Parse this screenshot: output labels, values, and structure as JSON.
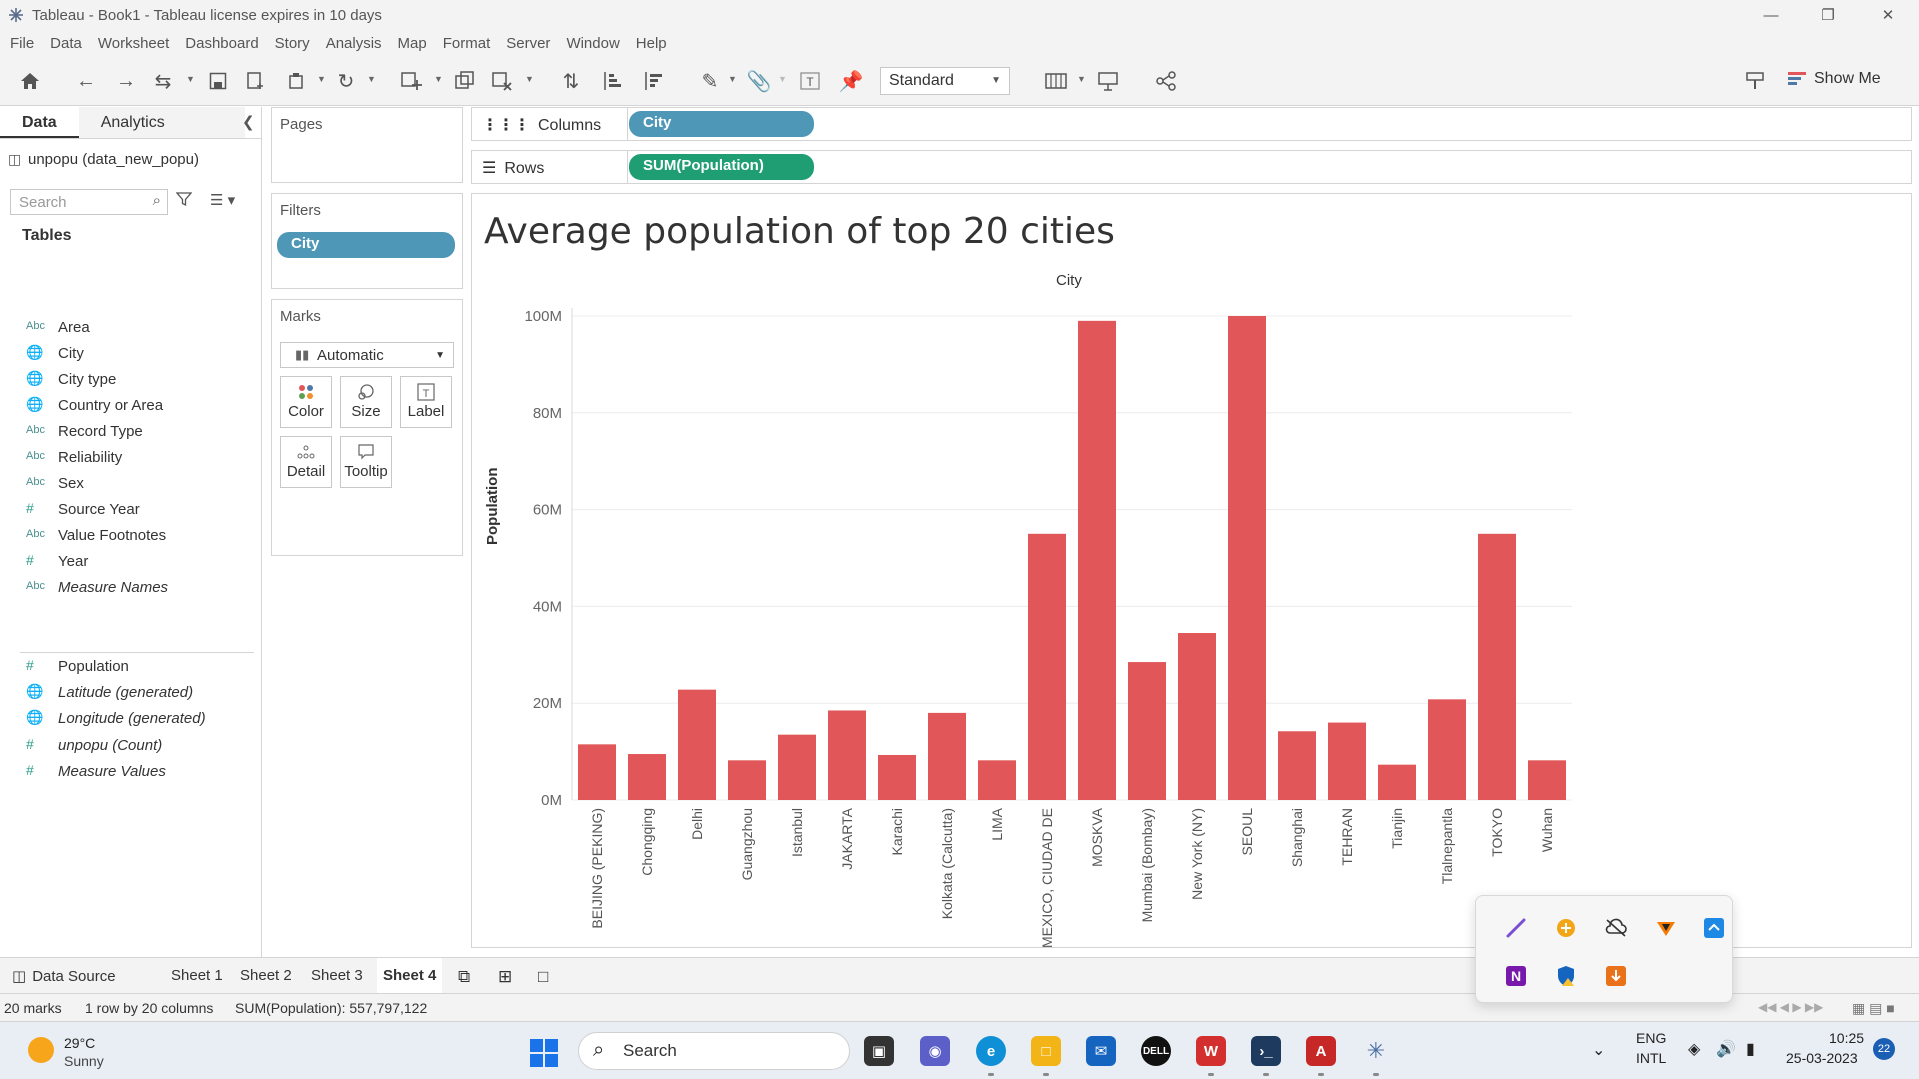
{
  "window": {
    "title": "Tableau - Book1 - Tableau license expires in 10 days"
  },
  "menu": [
    "File",
    "Data",
    "Worksheet",
    "Dashboard",
    "Story",
    "Analysis",
    "Map",
    "Format",
    "Server",
    "Window",
    "Help"
  ],
  "toolbar": {
    "fit_select": "Standard",
    "show_me": "Show Me"
  },
  "data_pane": {
    "tabs": [
      "Data",
      "Analytics"
    ],
    "data_source": "unpopu (data_new_popu)",
    "search_placeholder": "Search",
    "tables_heading": "Tables",
    "dimensions": [
      {
        "type": "Abc",
        "name": "Area"
      },
      {
        "type": "globe",
        "name": "City"
      },
      {
        "type": "globe",
        "name": "City type"
      },
      {
        "type": "globe",
        "name": "Country or Area"
      },
      {
        "type": "Abc",
        "name": "Record Type"
      },
      {
        "type": "Abc",
        "name": "Reliability"
      },
      {
        "type": "Abc",
        "name": "Sex"
      },
      {
        "type": "#",
        "name": "Source Year"
      },
      {
        "type": "Abc",
        "name": "Value Footnotes"
      },
      {
        "type": "#",
        "name": "Year"
      },
      {
        "type": "Abc",
        "name": "Measure Names",
        "italic": true
      }
    ],
    "measures": [
      {
        "type": "#",
        "name": "Population"
      },
      {
        "type": "globe",
        "name": "Latitude (generated)",
        "italic": true
      },
      {
        "type": "globe",
        "name": "Longitude (generated)",
        "italic": true
      },
      {
        "type": "#",
        "name": "unpopu (Count)",
        "italic": true
      },
      {
        "type": "#",
        "name": "Measure Values",
        "italic": true
      }
    ]
  },
  "cards": {
    "pages": "Pages",
    "filters": "Filters",
    "filter_pill": "City",
    "marks": "Marks",
    "mark_type": "Automatic",
    "mark_buttons": [
      "Color",
      "Size",
      "Label",
      "Detail",
      "Tooltip"
    ]
  },
  "shelves": {
    "columns_label": "Columns",
    "columns_pill": "City",
    "rows_label": "Rows",
    "rows_pill": "SUM(Population)"
  },
  "chart_data": {
    "type": "bar",
    "title": "Average population of top 20 cities",
    "xlabel": "City",
    "ylabel": "Population",
    "ylim": [
      0,
      100000000
    ],
    "yticks": [
      "0M",
      "20M",
      "40M",
      "60M",
      "80M",
      "100M"
    ],
    "ytick_values": [
      0,
      20000000,
      40000000,
      60000000,
      80000000,
      100000000
    ],
    "categories": [
      "BEIJING (PEKING)",
      "Chongqing",
      "Delhi",
      "Guangzhou",
      "Istanbul",
      "JAKARTA",
      "Karachi",
      "Kolkata (Calcutta)",
      "LIMA",
      "MEXICO, CIUDAD DE",
      "MOSKVA",
      "Mumbai (Bombay)",
      "New York (NY)",
      "SEOUL",
      "Shanghai",
      "TEHRAN",
      "Tianjin",
      "Tlalnepantla",
      "TOKYO",
      "Wuhan"
    ],
    "values": [
      11500000,
      9500000,
      22800000,
      8200000,
      13500000,
      18500000,
      9300000,
      18000000,
      8200000,
      55000000,
      99000000,
      28500000,
      34500000,
      100000000,
      14200000,
      16000000,
      7300000,
      20800000,
      55000000,
      8200000
    ],
    "bar_color": "#e15759",
    "grid": true
  },
  "sheet_tabs": {
    "data_source": "Data Source",
    "sheets": [
      "Sheet 1",
      "Sheet 2",
      "Sheet 3",
      "Sheet 4"
    ],
    "active": "Sheet 4"
  },
  "status": {
    "marks": "20 marks",
    "dims": "1 row by 20 columns",
    "sum": "SUM(Population): 557,797,122"
  },
  "taskbar": {
    "temp": "29°C",
    "weather": "Sunny",
    "search": "Search",
    "lang1": "ENG",
    "lang2": "INTL",
    "time": "10:25",
    "date": "25-03-2023",
    "notif": "22"
  }
}
